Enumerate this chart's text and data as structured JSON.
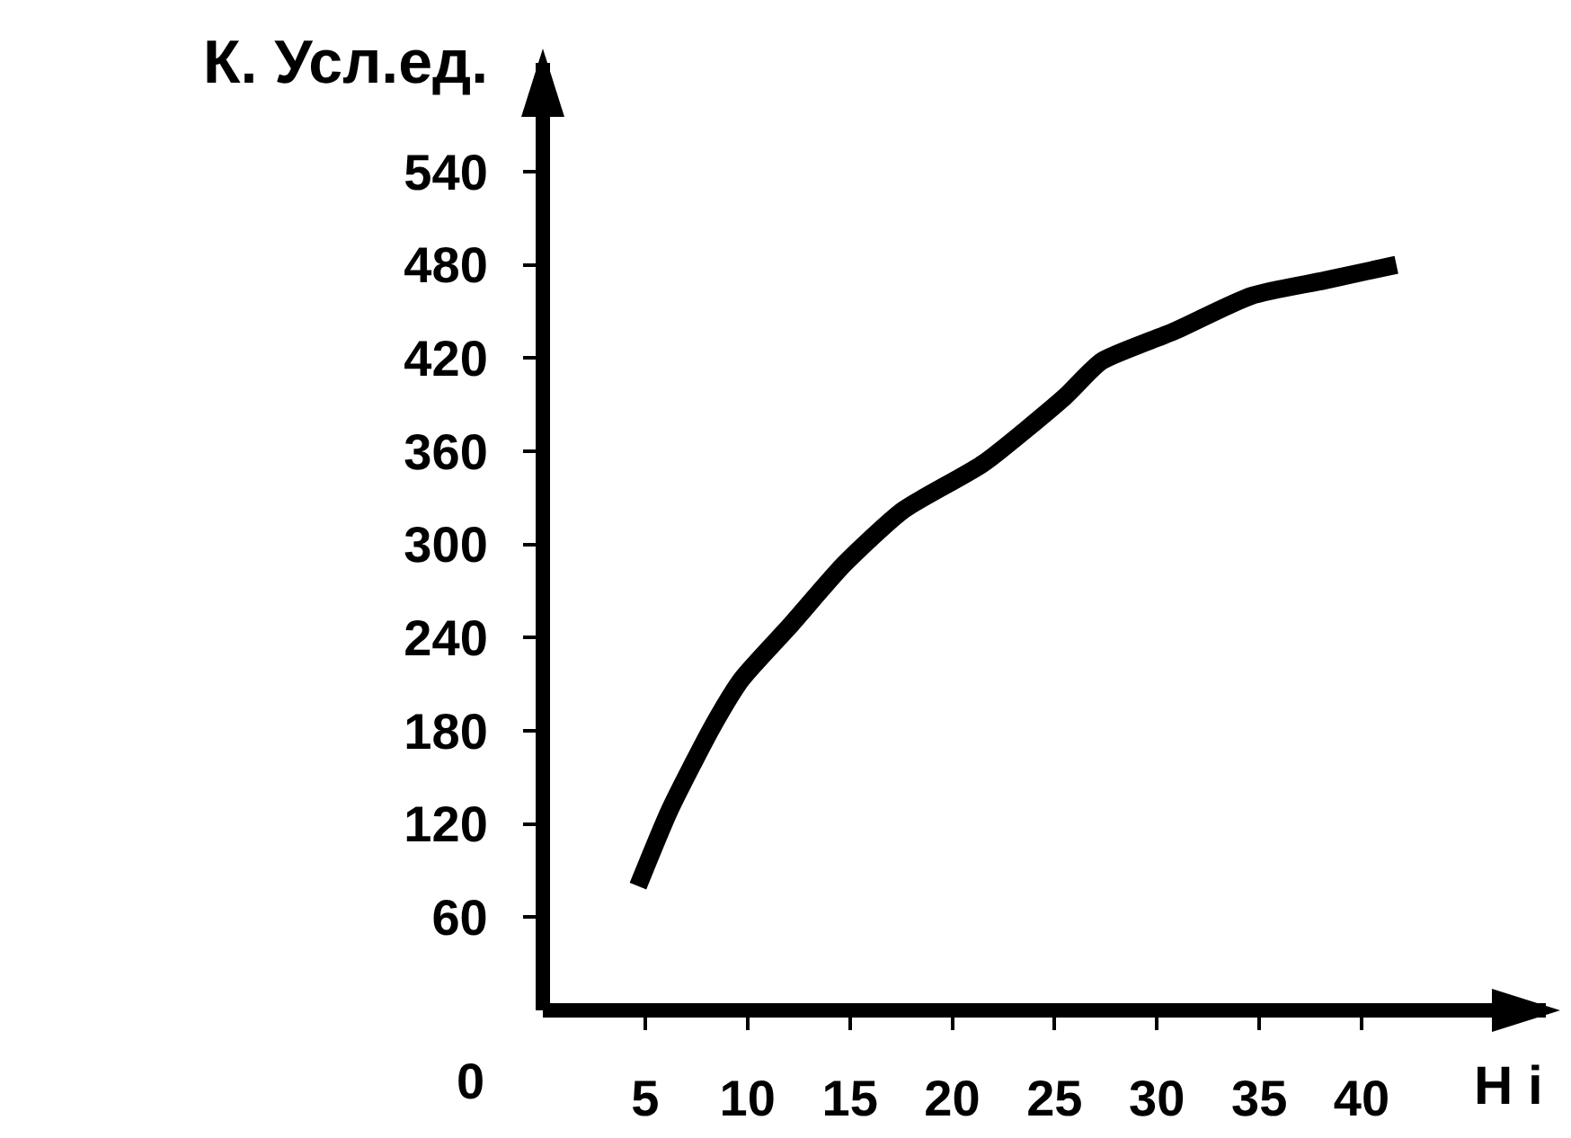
{
  "chart_data": {
    "type": "line",
    "xlabel": "Н i",
    "ylabel": "К. Усл.ед.",
    "x": [
      4.65,
      6.2,
      8.3,
      9.7,
      12.1,
      14.7,
      17.6,
      21.5,
      25.5,
      27.3,
      30.8,
      34.6,
      38.2,
      41.7
    ],
    "series": [
      {
        "color": "#000000",
        "values": [
          80,
          129,
          183,
          213,
          248,
          287,
          322,
          352,
          395,
          418,
          437,
          460,
          470,
          480
        ]
      }
    ],
    "xlim": [
      0,
      49
    ],
    "xticks": [
      5,
      10,
      15,
      20,
      25,
      30,
      35,
      40
    ],
    "ylim": [
      0,
      610
    ],
    "yticks": [
      60,
      120,
      180,
      240,
      300,
      360,
      420,
      480,
      540
    ],
    "annotations": [
      "0"
    ],
    "grid": false,
    "marker": "none",
    "line_style": "solid"
  }
}
